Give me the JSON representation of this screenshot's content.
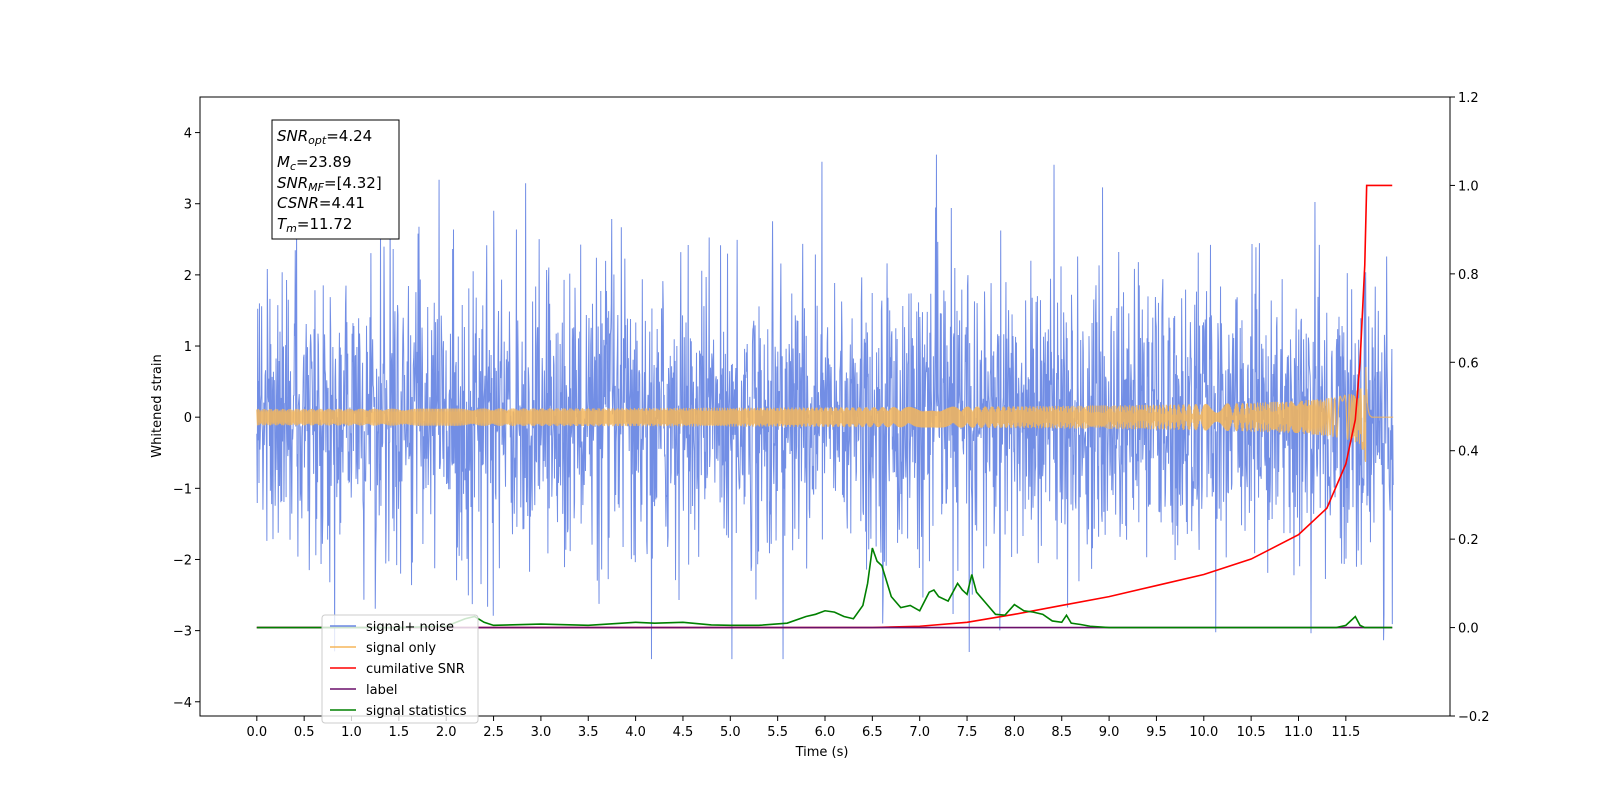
{
  "chart_data": {
    "type": "line",
    "xlabel": "Time (s)",
    "ylabel": "Whitened strain",
    "xlim": [
      -0.6,
      12.6
    ],
    "ylim": [
      -4.2,
      4.5
    ],
    "y2lim": [
      -0.2,
      1.2
    ],
    "x_ticks": [
      "0.0",
      "0.5",
      "1.0",
      "1.5",
      "2.0",
      "2.5",
      "3.0",
      "3.5",
      "4.0",
      "4.5",
      "5.0",
      "5.5",
      "6.0",
      "6.5",
      "7.0",
      "7.5",
      "8.0",
      "8.5",
      "9.0",
      "9.5",
      "10.0",
      "10.5",
      "11.0",
      "11.5"
    ],
    "y_ticks": [
      "4",
      "3",
      "2",
      "1",
      "0",
      "−1",
      "−2",
      "−3",
      "−4"
    ],
    "y2_ticks": [
      "1.2",
      "1.0",
      "0.8",
      "0.6",
      "0.4",
      "0.2",
      "0.0",
      "−0.2"
    ],
    "grid": false,
    "legend_position": "lower-left",
    "annotation": {
      "snr_opt": {
        "base": "SNR",
        "sub": "opt",
        "value": "=4.24"
      },
      "mc": {
        "base": "M",
        "sub": "c",
        "value": "=23.89"
      },
      "snr_mf": {
        "base": "SNR",
        "sub": "MF",
        "value": "=[4.32]"
      },
      "csnr": {
        "base": "CSNR",
        "value": "=4.41"
      },
      "tm": {
        "base": "T",
        "sub": "m",
        "value": "=11.72"
      }
    },
    "series": [
      {
        "name": "signal+ noise",
        "color": "#6a88e4",
        "axis": "left",
        "x_range": [
          0.0,
          12.0
        ],
        "y_approx_range": [
          -3.4,
          4.1
        ],
        "kind": "noise"
      },
      {
        "name": "signal only",
        "color": "#f5b65a",
        "axis": "left",
        "x_range": [
          0.0,
          12.0
        ],
        "chirp_merger_time": 11.72,
        "peak_amplitude": 0.85
      },
      {
        "name": "cumilative SNR",
        "color": "#ff0000",
        "axis": "right",
        "x": [
          0,
          5.5,
          6.5,
          7.0,
          7.5,
          8.0,
          8.5,
          9.0,
          9.5,
          10.0,
          10.5,
          11.0,
          11.3,
          11.5,
          11.6,
          11.65,
          11.7,
          11.72,
          11.75,
          11.99
        ],
        "y": [
          0,
          0.0,
          0.0,
          0.003,
          0.012,
          0.03,
          0.05,
          0.07,
          0.095,
          0.12,
          0.155,
          0.21,
          0.27,
          0.37,
          0.47,
          0.6,
          0.82,
          1.0,
          1.0,
          1.0
        ]
      },
      {
        "name": "label",
        "color": "#6a0f6a",
        "axis": "right",
        "x": [
          0,
          11.99
        ],
        "y": [
          0,
          0
        ]
      },
      {
        "name": "signal statistics",
        "color": "#008000",
        "axis": "right",
        "x": [
          0,
          1.5,
          2.0,
          2.2,
          2.3,
          2.4,
          2.5,
          3.0,
          3.5,
          4.0,
          4.2,
          4.5,
          4.8,
          5.0,
          5.3,
          5.6,
          5.8,
          5.9,
          6.0,
          6.1,
          6.2,
          6.3,
          6.4,
          6.45,
          6.5,
          6.55,
          6.6,
          6.7,
          6.8,
          6.9,
          7.0,
          7.1,
          7.15,
          7.2,
          7.3,
          7.4,
          7.45,
          7.5,
          7.55,
          7.6,
          7.7,
          7.8,
          7.9,
          8.0,
          8.1,
          8.2,
          8.3,
          8.4,
          8.5,
          8.55,
          8.6,
          8.7,
          8.8,
          9.0,
          9.5,
          10.0,
          11.0,
          11.4,
          11.5,
          11.6,
          11.65,
          11.7,
          11.99
        ],
        "y": [
          0,
          0,
          0.003,
          0.02,
          0.025,
          0.012,
          0.005,
          0.008,
          0.005,
          0.012,
          0.01,
          0.012,
          0.006,
          0.005,
          0.005,
          0.01,
          0.025,
          0.03,
          0.038,
          0.035,
          0.025,
          0.02,
          0.05,
          0.1,
          0.18,
          0.15,
          0.14,
          0.07,
          0.045,
          0.05,
          0.038,
          0.08,
          0.085,
          0.07,
          0.06,
          0.1,
          0.085,
          0.075,
          0.12,
          0.08,
          0.055,
          0.03,
          0.028,
          0.052,
          0.038,
          0.035,
          0.03,
          0.015,
          0.012,
          0.028,
          0.01,
          0.007,
          0.003,
          0,
          0,
          0,
          0,
          0,
          0.005,
          0.025,
          0.005,
          0,
          0
        ]
      }
    ]
  }
}
